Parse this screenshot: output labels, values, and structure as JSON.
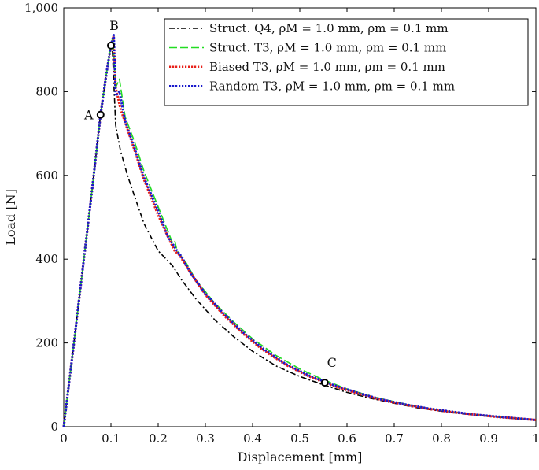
{
  "chart_data": {
    "type": "line",
    "xlabel": "Displacement [mm]",
    "ylabel": "Load [N]",
    "xlim": [
      0,
      1
    ],
    "ylim": [
      0,
      1000
    ],
    "xticks": [
      0,
      0.1,
      0.2,
      0.3,
      0.4,
      0.5,
      0.6,
      0.7,
      0.8,
      0.9,
      1
    ],
    "xtick_labels": [
      "0",
      "0.1",
      "0.2",
      "0.3",
      "0.4",
      "0.5",
      "0.6",
      "0.7",
      "0.8",
      "0.9",
      "1"
    ],
    "yticks": [
      0,
      200,
      400,
      600,
      800,
      1000
    ],
    "ytick_labels": [
      "0",
      "200",
      "400",
      "600",
      "800",
      "1,000"
    ],
    "grid": false,
    "legend_position": "top-right",
    "series": [
      {
        "name": "Struct. Q4, ρM = 1.0 mm, ρm = 0.1 mm",
        "color": "#000000",
        "style": "dashdot",
        "x": [
          0,
          0.02,
          0.04,
          0.06,
          0.078,
          0.09,
          0.1,
          0.103,
          0.11,
          0.12,
          0.135,
          0.15,
          0.17,
          0.2,
          0.23,
          0.25,
          0.28,
          0.32,
          0.36,
          0.4,
          0.45,
          0.5,
          0.55,
          0.6,
          0.65,
          0.7,
          0.75,
          0.8,
          0.85,
          0.9,
          0.95,
          1.0
        ],
        "y": [
          0,
          185,
          375,
          565,
          745,
          840,
          910,
          900,
          720,
          660,
          600,
          550,
          485,
          420,
          385,
          350,
          305,
          255,
          215,
          180,
          145,
          120,
          100,
          82,
          68,
          56,
          45,
          37,
          30,
          25,
          20,
          16
        ]
      },
      {
        "name": "Struct. T3, ρM = 1.0 mm, ρm = 0.1 mm",
        "color": "#22dd22",
        "style": "dashed",
        "x": [
          0,
          0.02,
          0.04,
          0.06,
          0.078,
          0.09,
          0.1,
          0.104,
          0.11,
          0.118,
          0.13,
          0.15,
          0.17,
          0.2,
          0.23,
          0.235,
          0.24,
          0.26,
          0.28,
          0.32,
          0.36,
          0.4,
          0.45,
          0.5,
          0.55,
          0.6,
          0.65,
          0.7,
          0.75,
          0.8,
          0.85,
          0.9,
          0.95,
          1.0
        ],
        "y": [
          0,
          185,
          375,
          565,
          745,
          840,
          910,
          930,
          810,
          830,
          740,
          680,
          610,
          525,
          440,
          445,
          420,
          390,
          350,
          295,
          250,
          210,
          170,
          138,
          112,
          90,
          73,
          60,
          48,
          39,
          32,
          26,
          21,
          16
        ]
      },
      {
        "name": "Biased T3, ρM = 1.0 mm, ρm = 0.1 mm",
        "color": "#e8211a",
        "style": "dotted",
        "x": [
          0,
          0.02,
          0.04,
          0.06,
          0.078,
          0.09,
          0.1,
          0.105,
          0.11,
          0.12,
          0.135,
          0.15,
          0.17,
          0.2,
          0.22,
          0.235,
          0.245,
          0.27,
          0.3,
          0.34,
          0.38,
          0.42,
          0.47,
          0.52,
          0.57,
          0.62,
          0.67,
          0.72,
          0.77,
          0.82,
          0.87,
          0.92,
          0.97,
          1.0
        ],
        "y": [
          0,
          185,
          375,
          565,
          745,
          840,
          910,
          932,
          810,
          760,
          710,
          660,
          590,
          505,
          455,
          420,
          410,
          365,
          315,
          265,
          222,
          185,
          148,
          120,
          98,
          80,
          65,
          53,
          43,
          35,
          29,
          23,
          19,
          16
        ]
      },
      {
        "name": "Random T3, ρM = 1.0 mm, ρm = 0.1 mm",
        "color": "#1a1acc",
        "style": "dotted",
        "x": [
          0,
          0.02,
          0.04,
          0.06,
          0.078,
          0.09,
          0.1,
          0.106,
          0.11,
          0.118,
          0.13,
          0.15,
          0.17,
          0.2,
          0.22,
          0.24,
          0.25,
          0.27,
          0.3,
          0.34,
          0.38,
          0.42,
          0.47,
          0.52,
          0.57,
          0.62,
          0.67,
          0.72,
          0.77,
          0.82,
          0.87,
          0.92,
          0.97,
          1.0
        ],
        "y": [
          0,
          185,
          375,
          565,
          745,
          840,
          912,
          935,
          790,
          800,
          730,
          665,
          595,
          515,
          455,
          420,
          405,
          365,
          318,
          268,
          225,
          188,
          150,
          122,
          100,
          82,
          66,
          54,
          44,
          36,
          29,
          24,
          19,
          16
        ]
      }
    ],
    "annotations": [
      {
        "label": "A",
        "x": 0.078,
        "y": 745
      },
      {
        "label": "B",
        "x": 0.1,
        "y": 910
      },
      {
        "label": "C",
        "x": 0.553,
        "y": 105
      }
    ]
  }
}
